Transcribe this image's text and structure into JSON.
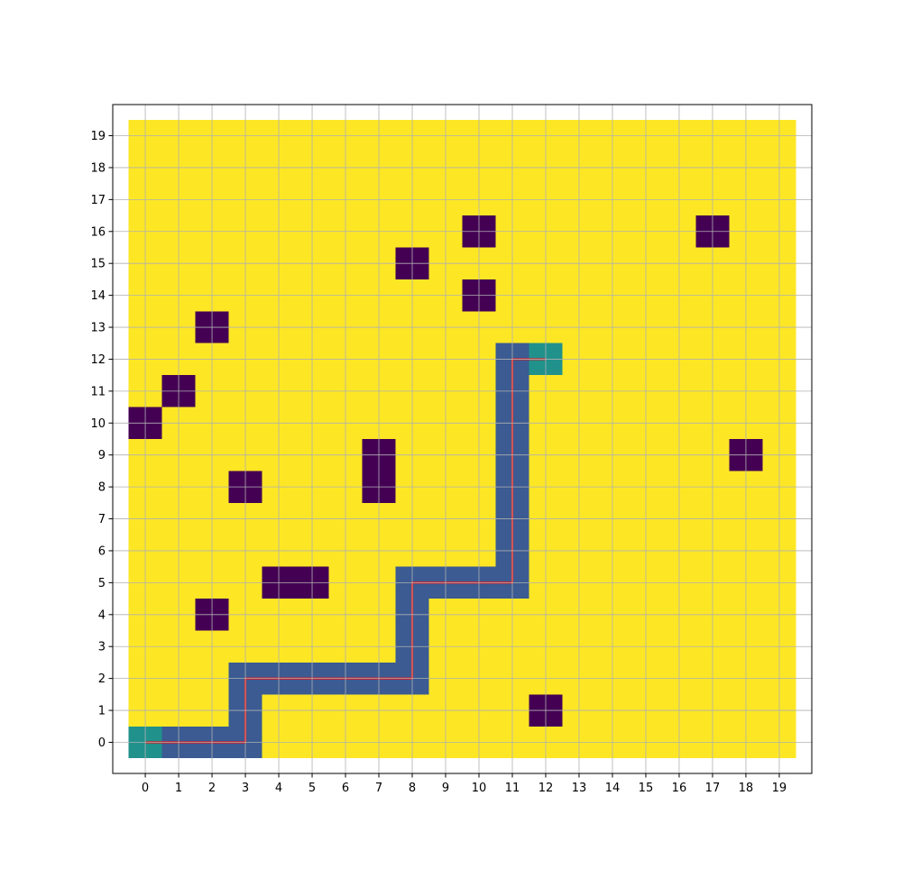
{
  "chart_data": {
    "type": "heatmap",
    "title": "",
    "xlabel": "",
    "ylabel": "",
    "xlim": [
      -0.5,
      19.5
    ],
    "ylim": [
      -0.5,
      19.5
    ],
    "x_ticks": [
      "0",
      "1",
      "2",
      "3",
      "4",
      "5",
      "6",
      "7",
      "8",
      "9",
      "10",
      "11",
      "12",
      "13",
      "14",
      "15",
      "16",
      "17",
      "18",
      "19"
    ],
    "y_ticks": [
      "0",
      "1",
      "2",
      "3",
      "4",
      "5",
      "6",
      "7",
      "8",
      "9",
      "10",
      "11",
      "12",
      "13",
      "14",
      "15",
      "16",
      "17",
      "18",
      "19"
    ],
    "grid": true,
    "colors": {
      "free": "#fde725",
      "obstacle": "#440154",
      "path": "#3b5b92",
      "endpoint": "#21918c",
      "route_line": "#e41a1c",
      "grid": "#b0b0b0"
    },
    "obstacles": [
      [
        10,
        16
      ],
      [
        17,
        16
      ],
      [
        8,
        15
      ],
      [
        10,
        14
      ],
      [
        2,
        13
      ],
      [
        1,
        11
      ],
      [
        0,
        10
      ],
      [
        7,
        9
      ],
      [
        18,
        9
      ],
      [
        3,
        8
      ],
      [
        7,
        8
      ],
      [
        4,
        5
      ],
      [
        5,
        5
      ],
      [
        2,
        4
      ],
      [
        12,
        1
      ]
    ],
    "path_cells": [
      [
        0,
        0
      ],
      [
        1,
        0
      ],
      [
        2,
        0
      ],
      [
        3,
        0
      ],
      [
        3,
        1
      ],
      [
        3,
        2
      ],
      [
        4,
        2
      ],
      [
        5,
        2
      ],
      [
        6,
        2
      ],
      [
        7,
        2
      ],
      [
        8,
        2
      ],
      [
        8,
        3
      ],
      [
        8,
        4
      ],
      [
        8,
        5
      ],
      [
        9,
        5
      ],
      [
        10,
        5
      ],
      [
        11,
        5
      ],
      [
        11,
        6
      ],
      [
        11,
        7
      ],
      [
        11,
        8
      ],
      [
        11,
        9
      ],
      [
        11,
        10
      ],
      [
        11,
        11
      ],
      [
        11,
        12
      ],
      [
        12,
        12
      ]
    ],
    "start": [
      0,
      0
    ],
    "goal": [
      12,
      12
    ],
    "route": [
      [
        0,
        0
      ],
      [
        3,
        0
      ],
      [
        3,
        2
      ],
      [
        8,
        2
      ],
      [
        8,
        5
      ],
      [
        11,
        5
      ],
      [
        11,
        12
      ],
      [
        12,
        12
      ]
    ]
  }
}
